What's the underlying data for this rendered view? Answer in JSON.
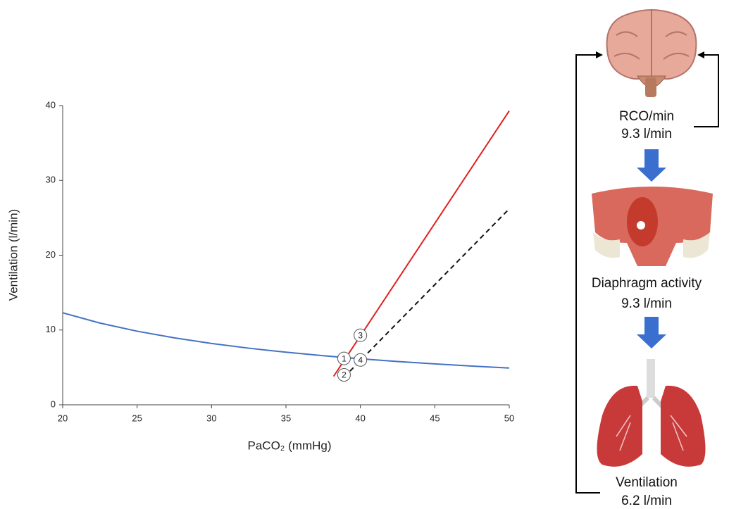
{
  "chart_data": {
    "type": "line",
    "x_label": "PaCO₂ (mmHg)",
    "y_label": "Ventilation (l/min)",
    "xlim": [
      20,
      50
    ],
    "xticks": [
      20,
      25,
      30,
      35,
      40,
      45,
      50
    ],
    "ylim": [
      0,
      40
    ],
    "yticks": [
      0,
      10,
      20,
      30,
      40
    ],
    "series": [
      {
        "color": "#4472c4",
        "dash": false,
        "x": [
          20,
          22.5,
          25,
          27.5,
          30,
          32.5,
          35,
          37.5,
          40,
          42.5,
          45,
          47.5,
          50
        ],
        "values": [
          12.3,
          10.93,
          9.84,
          8.95,
          8.2,
          7.57,
          7.03,
          6.56,
          6.15,
          5.79,
          5.47,
          5.18,
          4.92
        ]
      },
      {
        "color": "#e02020",
        "dash": false,
        "x": [
          38.2,
          50
        ],
        "values": [
          3.8,
          39.3
        ]
      },
      {
        "color": "#111111",
        "dash": true,
        "x": [
          39.3,
          50
        ],
        "values": [
          4.5,
          26.2
        ]
      }
    ],
    "annotations": [
      {
        "label": "1",
        "x": 38.9,
        "y": 6.2
      },
      {
        "label": "2",
        "x": 38.9,
        "y": 4.0
      },
      {
        "label": "3",
        "x": 40.0,
        "y": 9.3
      },
      {
        "label": "4",
        "x": 40.0,
        "y": 6.0
      }
    ]
  },
  "diagram": {
    "nodes": [
      {
        "label": "RCO/min",
        "value": "9.3 l/min"
      },
      {
        "label": "Diaphragm activity",
        "value": "9.3 l/min"
      },
      {
        "label": "Ventilation",
        "value": "6.2 l/min"
      }
    ]
  }
}
